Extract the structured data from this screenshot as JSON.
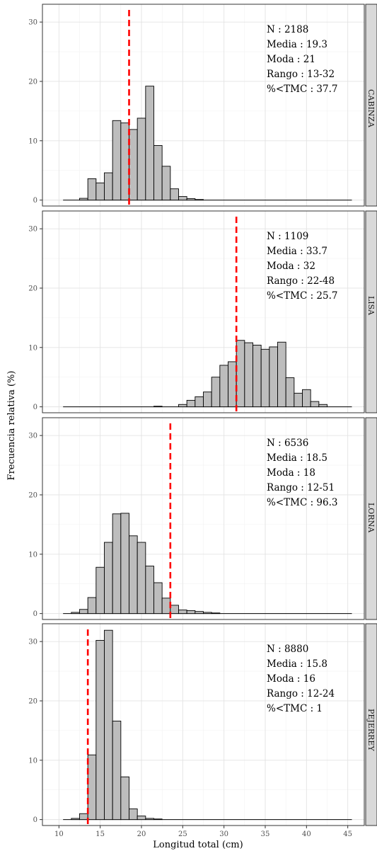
{
  "chart_data": {
    "type": "bar",
    "xlabel": "Longitud total (cm)",
    "ylabel": "Frecuencia relativa (%)",
    "xlim": [
      8.0,
      47.0
    ],
    "ylim": [
      -1.0,
      33.0
    ],
    "x_ticks": [
      "10",
      "15",
      "20",
      "25",
      "30",
      "35",
      "40",
      "45"
    ],
    "y_ticks": [
      "0",
      "10",
      "20",
      "30"
    ],
    "grid": true,
    "bin_width": 1,
    "bar_color": "#bdbdbd",
    "mean_line_color": "#ff0000",
    "panels": [
      {
        "name": "CABINZA",
        "strip_label": "CABINZA",
        "vline": 18.5,
        "stats": [
          {
            "label": "N :",
            "value": "2188"
          },
          {
            "label": "Media :",
            "value": "19.3"
          },
          {
            "label": "Moda :",
            "value": "21"
          },
          {
            "label": "Rango :",
            "value": "13-32"
          },
          {
            "label": "%<TMC :",
            "value": "37.7"
          }
        ],
        "bins": [
          {
            "x": 13,
            "y": 0.3
          },
          {
            "x": 14,
            "y": 3.6
          },
          {
            "x": 15,
            "y": 2.9
          },
          {
            "x": 16,
            "y": 4.6
          },
          {
            "x": 17,
            "y": 13.4
          },
          {
            "x": 18,
            "y": 13.0
          },
          {
            "x": 19,
            "y": 11.9
          },
          {
            "x": 20,
            "y": 13.8
          },
          {
            "x": 21,
            "y": 19.2
          },
          {
            "x": 22,
            "y": 9.2
          },
          {
            "x": 23,
            "y": 5.7
          },
          {
            "x": 24,
            "y": 1.9
          },
          {
            "x": 25,
            "y": 0.6
          },
          {
            "x": 26,
            "y": 0.25
          },
          {
            "x": 27,
            "y": 0.1
          }
        ]
      },
      {
        "name": "LISA",
        "strip_label": "LISA",
        "vline": 31.5,
        "stats": [
          {
            "label": "N :",
            "value": "1109"
          },
          {
            "label": "Media :",
            "value": "33.7"
          },
          {
            "label": "Moda :",
            "value": "32"
          },
          {
            "label": "Rango :",
            "value": "22-48"
          },
          {
            "label": "%<TMC :",
            "value": "25.7"
          }
        ],
        "bins": [
          {
            "x": 22,
            "y": 0.1
          },
          {
            "x": 25,
            "y": 0.4
          },
          {
            "x": 26,
            "y": 1.1
          },
          {
            "x": 27,
            "y": 1.7
          },
          {
            "x": 28,
            "y": 2.5
          },
          {
            "x": 29,
            "y": 5.0
          },
          {
            "x": 30,
            "y": 7.0
          },
          {
            "x": 31,
            "y": 7.6
          },
          {
            "x": 32,
            "y": 11.2
          },
          {
            "x": 33,
            "y": 10.8
          },
          {
            "x": 34,
            "y": 10.4
          },
          {
            "x": 35,
            "y": 9.7
          },
          {
            "x": 36,
            "y": 10.1
          },
          {
            "x": 37,
            "y": 10.9
          },
          {
            "x": 38,
            "y": 4.9
          },
          {
            "x": 39,
            "y": 2.3
          },
          {
            "x": 40,
            "y": 2.9
          },
          {
            "x": 41,
            "y": 0.9
          },
          {
            "x": 42,
            "y": 0.4
          }
        ]
      },
      {
        "name": "LORNA",
        "strip_label": "LORNA",
        "vline": 23.5,
        "stats": [
          {
            "label": "N :",
            "value": "6536"
          },
          {
            "label": "Media :",
            "value": "18.5"
          },
          {
            "label": "Moda :",
            "value": "18"
          },
          {
            "label": "Rango :",
            "value": "12-51"
          },
          {
            "label": "%<TMC :",
            "value": "96.3"
          }
        ],
        "bins": [
          {
            "x": 12,
            "y": 0.2
          },
          {
            "x": 13,
            "y": 0.7
          },
          {
            "x": 14,
            "y": 2.7
          },
          {
            "x": 15,
            "y": 7.8
          },
          {
            "x": 16,
            "y": 12.0
          },
          {
            "x": 17,
            "y": 16.8
          },
          {
            "x": 18,
            "y": 16.9
          },
          {
            "x": 19,
            "y": 13.1
          },
          {
            "x": 20,
            "y": 12.0
          },
          {
            "x": 21,
            "y": 8.0
          },
          {
            "x": 22,
            "y": 5.2
          },
          {
            "x": 23,
            "y": 2.6
          },
          {
            "x": 24,
            "y": 1.4
          },
          {
            "x": 25,
            "y": 0.6
          },
          {
            "x": 26,
            "y": 0.5
          },
          {
            "x": 27,
            "y": 0.35
          },
          {
            "x": 28,
            "y": 0.2
          },
          {
            "x": 29,
            "y": 0.1
          }
        ]
      },
      {
        "name": "PEJERREY",
        "strip_label": "PEJERREY",
        "vline": 13.5,
        "stats": [
          {
            "label": "N :",
            "value": "8880"
          },
          {
            "label": "Media :",
            "value": "15.8"
          },
          {
            "label": "Moda :",
            "value": "16"
          },
          {
            "label": "Rango :",
            "value": "12-24"
          },
          {
            "label": "%<TMC :",
            "value": "1"
          }
        ],
        "bins": [
          {
            "x": 12,
            "y": 0.2
          },
          {
            "x": 13,
            "y": 1.0
          },
          {
            "x": 14,
            "y": 10.9
          },
          {
            "x": 15,
            "y": 30.2
          },
          {
            "x": 16,
            "y": 31.9
          },
          {
            "x": 17,
            "y": 16.6
          },
          {
            "x": 18,
            "y": 7.2
          },
          {
            "x": 19,
            "y": 1.8
          },
          {
            "x": 20,
            "y": 0.6
          },
          {
            "x": 21,
            "y": 0.2
          },
          {
            "x": 22,
            "y": 0.1
          }
        ]
      }
    ]
  }
}
